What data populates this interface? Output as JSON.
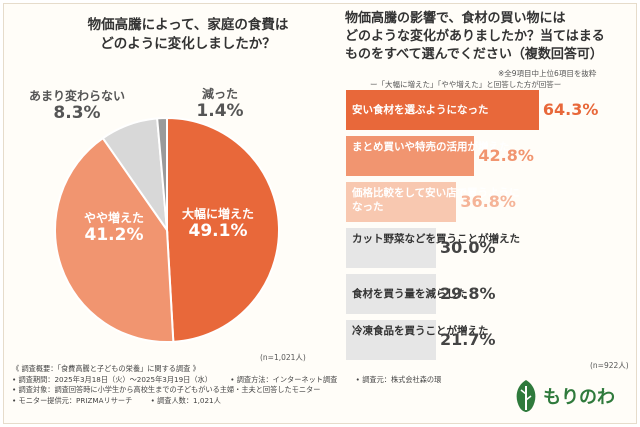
{
  "left_chart": {
    "title_line1": "物価高騰によって、家庭の食費は",
    "title_line2": "どのように変化しましたか？",
    "n_label": "(n=1,021人)"
  },
  "right_chart": {
    "title_line1": "物価高騰の影響で、食材の買い物には",
    "title_line2": "どのような変化がありましたか？当てはまる",
    "title_line3": "ものをすべて選んでください（複数回答可）",
    "note1": "ー「大幅に増えた」「やや増えた」と回答した方が回答ー",
    "note2": "※全9項目中上位6項目を抜粋",
    "n_label": "(n=922人)"
  },
  "chart_data": [
    {
      "type": "pie",
      "title": "物価高騰によって、家庭の食費はどのように変化しましたか？",
      "slices": [
        {
          "label": "大幅に増えた",
          "value": 49.1,
          "display": "49.1%",
          "color": "#e8683a"
        },
        {
          "label": "やや増えた",
          "value": 41.2,
          "display": "41.2%",
          "color": "#f19570"
        },
        {
          "label": "あまり変わらない",
          "value": 8.3,
          "display": "8.3%",
          "color": "#d8d8d8"
        },
        {
          "label": "減った",
          "value": 1.4,
          "display": "1.4%",
          "color": "#9a9a9a"
        }
      ]
    },
    {
      "type": "bar",
      "orientation": "horizontal",
      "title": "物価高騰の影響で、食材の買い物にはどのような変化がありましたか？",
      "xlim": [
        0,
        70
      ],
      "bars": [
        {
          "label": "安い食材を選ぶようになった",
          "value": 64.3,
          "display": "64.3%",
          "color": "#e8683a",
          "text_color": "#ffffff",
          "value_color": "#e8683a"
        },
        {
          "label": "まとめ買いや特売の活用が増えた",
          "value": 42.8,
          "display": "42.8%",
          "color": "#f19570",
          "text_color": "#ffffff",
          "value_color": "#f19570"
        },
        {
          "label": "価格比較をして安い店で買うようになった",
          "value": 36.8,
          "display": "36.8%",
          "color": "#f8c8b0",
          "text_color": "#ffffff",
          "value_color": "#f5b498"
        },
        {
          "label": "カット野菜などを買うことが増えた",
          "value": 30.0,
          "display": "30.0%",
          "color": "#e6e6e6",
          "text_color": "#333333",
          "value_color": "#444444"
        },
        {
          "label": "食材を買う量を減らした",
          "value": 29.8,
          "display": "29.8%",
          "color": "#e6e6e6",
          "text_color": "#333333",
          "value_color": "#444444"
        },
        {
          "label": "冷凍食品を買うことが増えた",
          "value": 21.7,
          "display": "21.7%",
          "color": "#e6e6e6",
          "text_color": "#333333",
          "value_color": "#444444"
        }
      ]
    }
  ],
  "footer": {
    "line1": "《 調査概要：「食費高騰と子どもの栄養」に関する調査 》",
    "line2a": "• 調査期間：2025年3月18日（火）〜2025年3月19日（水）",
    "line2b": "• 調査方法：インターネット調査",
    "line2c": "• 調査元：株式会社森の環",
    "line3": "• 調査対象：調査回答時に小学生から高校生までの子どもがいる主婦・主夫と回答したモニター",
    "line4a": "• モニター提供元：PRIZMAリサーチ",
    "line4b": "• 調査人数：1,021人"
  },
  "logo": {
    "text": "もりのわ",
    "color": "#2f7a3c"
  }
}
